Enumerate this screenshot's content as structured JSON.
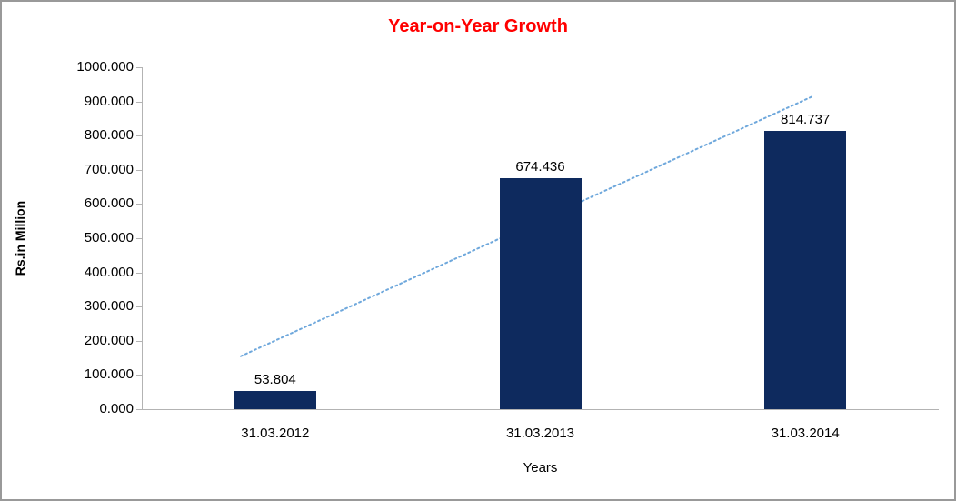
{
  "chart_data": {
    "type": "bar",
    "title": "Year-on-Year Growth",
    "title_color": "#FF0000",
    "xlabel": "Years",
    "ylabel": "Rs.in Million",
    "categories": [
      "31.03.2012",
      "31.03.2013",
      "31.03.2014"
    ],
    "values": [
      53.804,
      674.436,
      814.737
    ],
    "value_labels": [
      "53.804",
      "674.436",
      "814.737"
    ],
    "ylim": [
      0,
      1000
    ],
    "ytick_values": [
      0,
      100,
      200,
      300,
      400,
      500,
      600,
      700,
      800,
      900,
      1000
    ],
    "ytick_labels": [
      "0.000",
      "100.000",
      "200.000",
      "300.000",
      "400.000",
      "500.000",
      "600.000",
      "700.000",
      "800.000",
      "900.000",
      "1000.000"
    ],
    "bar_color": "#0E2A5E",
    "grid": false,
    "legend": false,
    "trendline": {
      "present": true,
      "style": "dotted",
      "color": "#6FA8DC"
    }
  }
}
